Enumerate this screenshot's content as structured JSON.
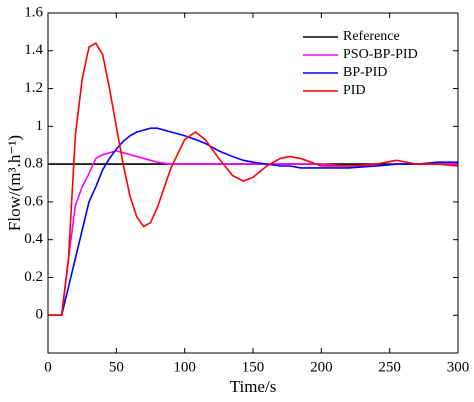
{
  "chart_data": {
    "type": "line",
    "x_label": "Time/s",
    "y_label": "Flow/(m³.h⁻¹)",
    "x": [
      0,
      10,
      15,
      20,
      25,
      30,
      35,
      40,
      45,
      50,
      55,
      60,
      65,
      70,
      75,
      80,
      90,
      100,
      108,
      115,
      125,
      135,
      143,
      150,
      160,
      170,
      177,
      185,
      200,
      220,
      240,
      255,
      270,
      285,
      300
    ],
    "series": [
      {
        "name": "Reference",
        "color": "#000000",
        "values": [
          0.8,
          0.8,
          0.8,
          0.8,
          0.8,
          0.8,
          0.8,
          0.8,
          0.8,
          0.8,
          0.8,
          0.8,
          0.8,
          0.8,
          0.8,
          0.8,
          0.8,
          0.8,
          0.8,
          0.8,
          0.8,
          0.8,
          0.8,
          0.8,
          0.8,
          0.8,
          0.8,
          0.8,
          0.8,
          0.8,
          0.8,
          0.8,
          0.8,
          0.8,
          0.8
        ]
      },
      {
        "name": "PSO-BP-PID",
        "color": "#ff00ff",
        "values": [
          0,
          0,
          0.3,
          0.58,
          0.68,
          0.75,
          0.83,
          0.85,
          0.86,
          0.87,
          0.86,
          0.85,
          0.84,
          0.83,
          0.82,
          0.81,
          0.8,
          0.8,
          0.8,
          0.8,
          0.8,
          0.8,
          0.8,
          0.8,
          0.8,
          0.8,
          0.8,
          0.8,
          0.8,
          0.79,
          0.79,
          0.8,
          0.8,
          0.8,
          0.8
        ]
      },
      {
        "name": "BP-PID",
        "color": "#0000ff",
        "values": [
          0,
          0,
          0.15,
          0.3,
          0.45,
          0.6,
          0.68,
          0.77,
          0.83,
          0.88,
          0.92,
          0.95,
          0.97,
          0.98,
          0.99,
          0.99,
          0.97,
          0.95,
          0.93,
          0.91,
          0.87,
          0.84,
          0.82,
          0.81,
          0.8,
          0.79,
          0.79,
          0.78,
          0.78,
          0.78,
          0.79,
          0.8,
          0.8,
          0.81,
          0.81
        ]
      },
      {
        "name": "PID",
        "color": "#ff0000",
        "values": [
          0,
          0,
          0.3,
          0.95,
          1.25,
          1.42,
          1.44,
          1.38,
          1.2,
          1.0,
          0.8,
          0.63,
          0.52,
          0.47,
          0.49,
          0.57,
          0.78,
          0.93,
          0.97,
          0.93,
          0.83,
          0.74,
          0.71,
          0.73,
          0.79,
          0.83,
          0.84,
          0.83,
          0.79,
          0.79,
          0.8,
          0.82,
          0.8,
          0.8,
          0.79
        ]
      }
    ],
    "xlim": [
      0,
      300
    ],
    "xticks": [
      0,
      50,
      100,
      150,
      200,
      250,
      300
    ],
    "ylim": [
      -0.2,
      1.6
    ],
    "yticks": [
      0,
      0.2,
      0.4,
      0.6,
      0.8,
      1,
      1.2,
      1.4,
      1.6
    ],
    "grid": false,
    "legend": "upper right"
  }
}
